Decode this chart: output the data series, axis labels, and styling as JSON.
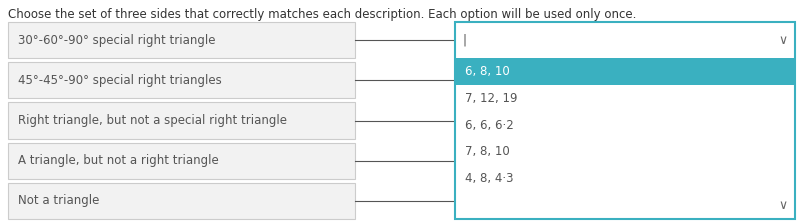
{
  "title": "Choose the set of three sides that correctly matches each description. Each option will be used only once.",
  "title_fontsize": 8.5,
  "title_color": "#333333",
  "background_color": "#ffffff",
  "row_labels": [
    "30°-60°-90° special right triangle",
    "45°-45°-90° special right triangles",
    "Right triangle, but not a special right triangle",
    "A triangle, but not a right triangle",
    "Not a triangle"
  ],
  "label_box_color": "#f2f2f2",
  "label_box_border": "#cccccc",
  "label_text_color": "#555555",
  "label_fontsize": 8.5,
  "connector_line_color": "#555555",
  "dropdown_border_color": "#3ab0c0",
  "dropdown_input_bg": "#ffffff",
  "dropdown_input_text": "|",
  "dropdown_input_text_color": "#555555",
  "dropdown_chevron": "∨",
  "dropdown_chevron_color": "#666666",
  "dropdown_options": [
    "6, 8, 10",
    "7, 12, 19",
    "6, 6, 6·2",
    "7, 8, 10",
    "4, 8, 4·3"
  ],
  "dropdown_option_bg": [
    "#3ab0c0",
    "#ffffff",
    "#ffffff",
    "#ffffff",
    "#ffffff"
  ],
  "dropdown_option_text_color": [
    "#ffffff",
    "#555555",
    "#555555",
    "#555555",
    "#555555"
  ],
  "dropdown_option_fontsize": 8.5
}
